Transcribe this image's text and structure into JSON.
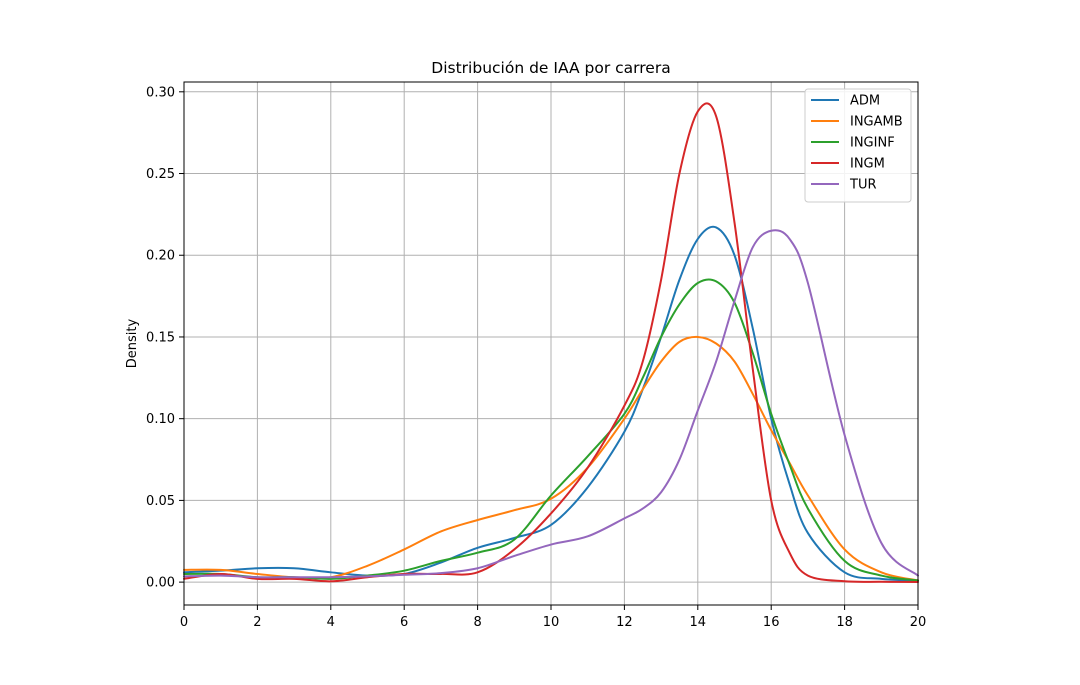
{
  "chart_data": {
    "type": "line",
    "title": "Distribución de IAA por carrera",
    "xlabel": "",
    "ylabel": "Density",
    "xlim": [
      0,
      20
    ],
    "ylim": [
      -0.014,
      0.306
    ],
    "x_ticks": [
      0,
      2,
      4,
      6,
      8,
      10,
      12,
      14,
      16,
      18,
      20
    ],
    "y_ticks": [
      0.0,
      0.05,
      0.1,
      0.15,
      0.2,
      0.25,
      0.3
    ],
    "x_tick_labels": [
      "0",
      "2",
      "4",
      "6",
      "8",
      "10",
      "12",
      "14",
      "16",
      "18",
      "20"
    ],
    "y_tick_labels": [
      "0.00",
      "0.05",
      "0.10",
      "0.15",
      "0.20",
      "0.25",
      "0.30"
    ],
    "grid": true,
    "legend_position": "top-right",
    "x": [
      0,
      1,
      2,
      3,
      4,
      5,
      6,
      7,
      8,
      9,
      10,
      11,
      12,
      12.5,
      13,
      13.5,
      14,
      14.5,
      15,
      15.5,
      16,
      16.5,
      17,
      18,
      19,
      20
    ],
    "series": [
      {
        "name": "ADM",
        "color": "#1f77b4",
        "values": [
          0.006,
          0.007,
          0.0085,
          0.0085,
          0.006,
          0.004,
          0.005,
          0.012,
          0.021,
          0.027,
          0.035,
          0.058,
          0.092,
          0.118,
          0.15,
          0.185,
          0.21,
          0.217,
          0.2,
          0.155,
          0.1,
          0.06,
          0.03,
          0.006,
          0.002,
          0.001
        ]
      },
      {
        "name": "INGAMB",
        "color": "#ff7f0e",
        "values": [
          0.0075,
          0.0075,
          0.005,
          0.003,
          0.003,
          0.01,
          0.02,
          0.031,
          0.038,
          0.044,
          0.051,
          0.07,
          0.1,
          0.118,
          0.135,
          0.147,
          0.15,
          0.146,
          0.135,
          0.115,
          0.093,
          0.073,
          0.053,
          0.02,
          0.006,
          0.001
        ]
      },
      {
        "name": "INGINF",
        "color": "#2ca02c",
        "values": [
          0.005,
          0.005,
          0.003,
          0.003,
          0.002,
          0.004,
          0.007,
          0.013,
          0.018,
          0.026,
          0.053,
          0.077,
          0.103,
          0.125,
          0.15,
          0.17,
          0.183,
          0.184,
          0.171,
          0.14,
          0.103,
          0.072,
          0.045,
          0.013,
          0.004,
          0.001
        ]
      },
      {
        "name": "INGM",
        "color": "#d62728",
        "values": [
          0.002,
          0.005,
          0.002,
          0.002,
          0.0005,
          0.003,
          0.005,
          0.005,
          0.006,
          0.02,
          0.042,
          0.07,
          0.108,
          0.135,
          0.185,
          0.25,
          0.288,
          0.285,
          0.22,
          0.13,
          0.05,
          0.018,
          0.004,
          0.0005,
          0.0002,
          0.0001
        ]
      },
      {
        "name": "TUR",
        "color": "#9467bd",
        "values": [
          0.0035,
          0.004,
          0.003,
          0.003,
          0.003,
          0.0035,
          0.0045,
          0.0055,
          0.0085,
          0.016,
          0.023,
          0.028,
          0.039,
          0.045,
          0.055,
          0.075,
          0.105,
          0.135,
          0.172,
          0.205,
          0.215,
          0.21,
          0.183,
          0.09,
          0.024,
          0.004
        ]
      }
    ]
  }
}
